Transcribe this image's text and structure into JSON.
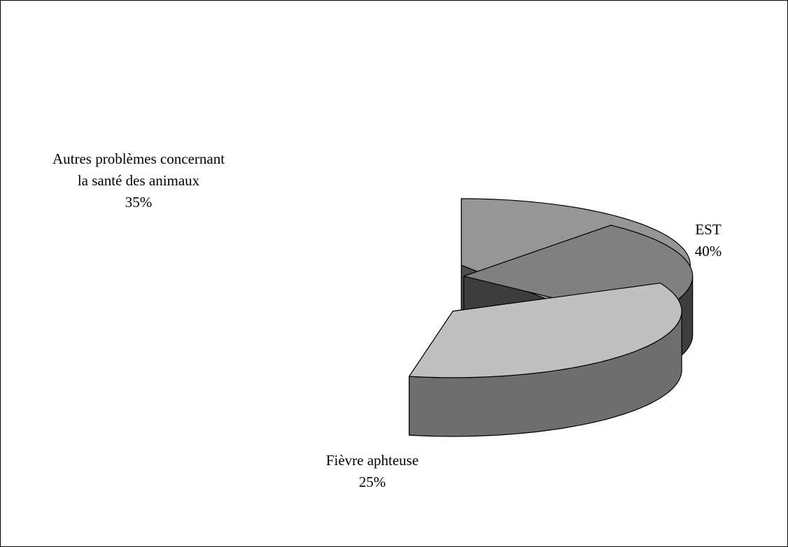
{
  "chart_data": {
    "type": "pie",
    "three_d": true,
    "exploded": true,
    "title": "",
    "slices": [
      {
        "id": "est",
        "label_lines": [
          "EST"
        ],
        "value": 40,
        "value_label": "40%",
        "top_color": "#969696",
        "side_color": "#4d4d4d"
      },
      {
        "id": "fa",
        "label_lines": [
          "Fièvre aphteuse"
        ],
        "value": 25,
        "value_label": "25%",
        "top_color": "#808080",
        "side_color": "#3d3d3d"
      },
      {
        "id": "autres",
        "label_lines": [
          "Autres problèmes concernant",
          "la santé des animaux"
        ],
        "value": 35,
        "value_label": "35%",
        "top_color": "#c0c0c0",
        "side_color": "#6e6e6e"
      }
    ],
    "legend": "none"
  }
}
